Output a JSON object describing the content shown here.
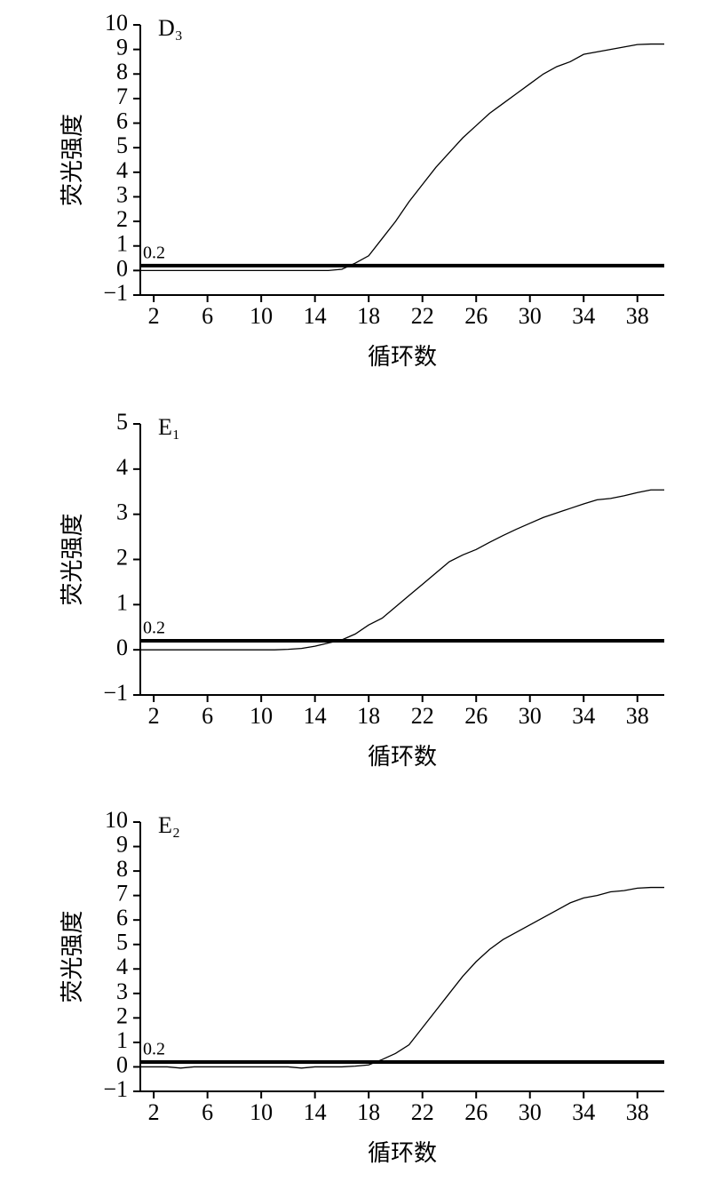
{
  "chart_data": [
    {
      "type": "line",
      "panel_label": "D₃",
      "ylabel": "荧光强度",
      "xlabel": "循环数",
      "x": [
        1,
        2,
        3,
        4,
        5,
        6,
        7,
        8,
        9,
        10,
        11,
        12,
        13,
        14,
        15,
        16,
        17,
        18,
        19,
        20,
        21,
        22,
        23,
        24,
        25,
        26,
        27,
        28,
        29,
        30,
        31,
        32,
        33,
        34,
        35,
        36,
        37,
        38,
        39,
        40
      ],
      "values": [
        0,
        0,
        0,
        0,
        0,
        0,
        0,
        0,
        0,
        0,
        0,
        0,
        0,
        0,
        0,
        0.05,
        0.3,
        0.6,
        1.3,
        2.0,
        2.8,
        3.5,
        4.2,
        4.8,
        5.4,
        5.9,
        6.4,
        6.8,
        7.2,
        7.6,
        8.0,
        8.3,
        8.5,
        8.8,
        8.9,
        9.0,
        9.1,
        9.2,
        9.22,
        9.22
      ],
      "color": "#000000",
      "threshold": 0.2,
      "xlim": [
        1,
        40
      ],
      "xticks": [
        2,
        6,
        10,
        14,
        18,
        22,
        26,
        30,
        34,
        38
      ],
      "ylim": [
        -1,
        10
      ],
      "yticks": [
        {
          "value": -1,
          "label": "−1"
        },
        0,
        1,
        2,
        3,
        4,
        5,
        6,
        7,
        8,
        9,
        10
      ]
    },
    {
      "type": "line",
      "panel_label": "E₁",
      "ylabel": "荧光强度",
      "xlabel": "循环数",
      "x": [
        1,
        2,
        3,
        4,
        5,
        6,
        7,
        8,
        9,
        10,
        11,
        12,
        13,
        14,
        15,
        16,
        17,
        18,
        19,
        20,
        21,
        22,
        23,
        24,
        25,
        26,
        27,
        28,
        29,
        30,
        31,
        32,
        33,
        34,
        35,
        36,
        37,
        38,
        39,
        40
      ],
      "values": [
        0,
        0,
        0,
        0,
        0,
        0,
        0,
        0,
        0,
        0,
        0,
        0.01,
        0.03,
        0.08,
        0.15,
        0.22,
        0.35,
        0.55,
        0.7,
        0.95,
        1.2,
        1.45,
        1.7,
        1.95,
        2.1,
        2.22,
        2.38,
        2.53,
        2.67,
        2.8,
        2.93,
        3.03,
        3.13,
        3.23,
        3.32,
        3.35,
        3.41,
        3.48,
        3.54,
        3.54
      ],
      "color": "#000000",
      "threshold": 0.2,
      "xlim": [
        1,
        40
      ],
      "xticks": [
        2,
        6,
        10,
        14,
        18,
        22,
        26,
        30,
        34,
        38
      ],
      "ylim": [
        -1,
        5
      ],
      "yticks": [
        {
          "value": -1,
          "label": "−1"
        },
        0,
        1,
        2,
        3,
        4,
        5
      ]
    },
    {
      "type": "line",
      "panel_label": "E₂",
      "ylabel": "荧光强度",
      "xlabel": "循环数",
      "x": [
        1,
        2,
        3,
        4,
        5,
        6,
        7,
        8,
        9,
        10,
        11,
        12,
        13,
        14,
        15,
        16,
        17,
        18,
        19,
        20,
        21,
        22,
        23,
        24,
        25,
        26,
        27,
        28,
        29,
        30,
        31,
        32,
        33,
        34,
        35,
        36,
        37,
        38,
        39,
        40
      ],
      "values": [
        0,
        0,
        0,
        -0.05,
        0,
        0,
        0,
        0,
        0,
        0,
        0,
        0,
        -0.05,
        0,
        0,
        0,
        0.03,
        0.08,
        0.3,
        0.55,
        0.9,
        1.6,
        2.3,
        3.0,
        3.7,
        4.3,
        4.8,
        5.2,
        5.5,
        5.8,
        6.1,
        6.4,
        6.7,
        6.9,
        7.0,
        7.15,
        7.2,
        7.3,
        7.33,
        7.33
      ],
      "color": "#000000",
      "threshold": 0.2,
      "xlim": [
        1,
        40
      ],
      "xticks": [
        2,
        6,
        10,
        14,
        18,
        22,
        26,
        30,
        34,
        38
      ],
      "ylim": [
        -1,
        10
      ],
      "yticks": [
        {
          "value": -1,
          "label": "−1"
        },
        0,
        1,
        2,
        3,
        4,
        5,
        6,
        7,
        8,
        9,
        10
      ]
    }
  ]
}
